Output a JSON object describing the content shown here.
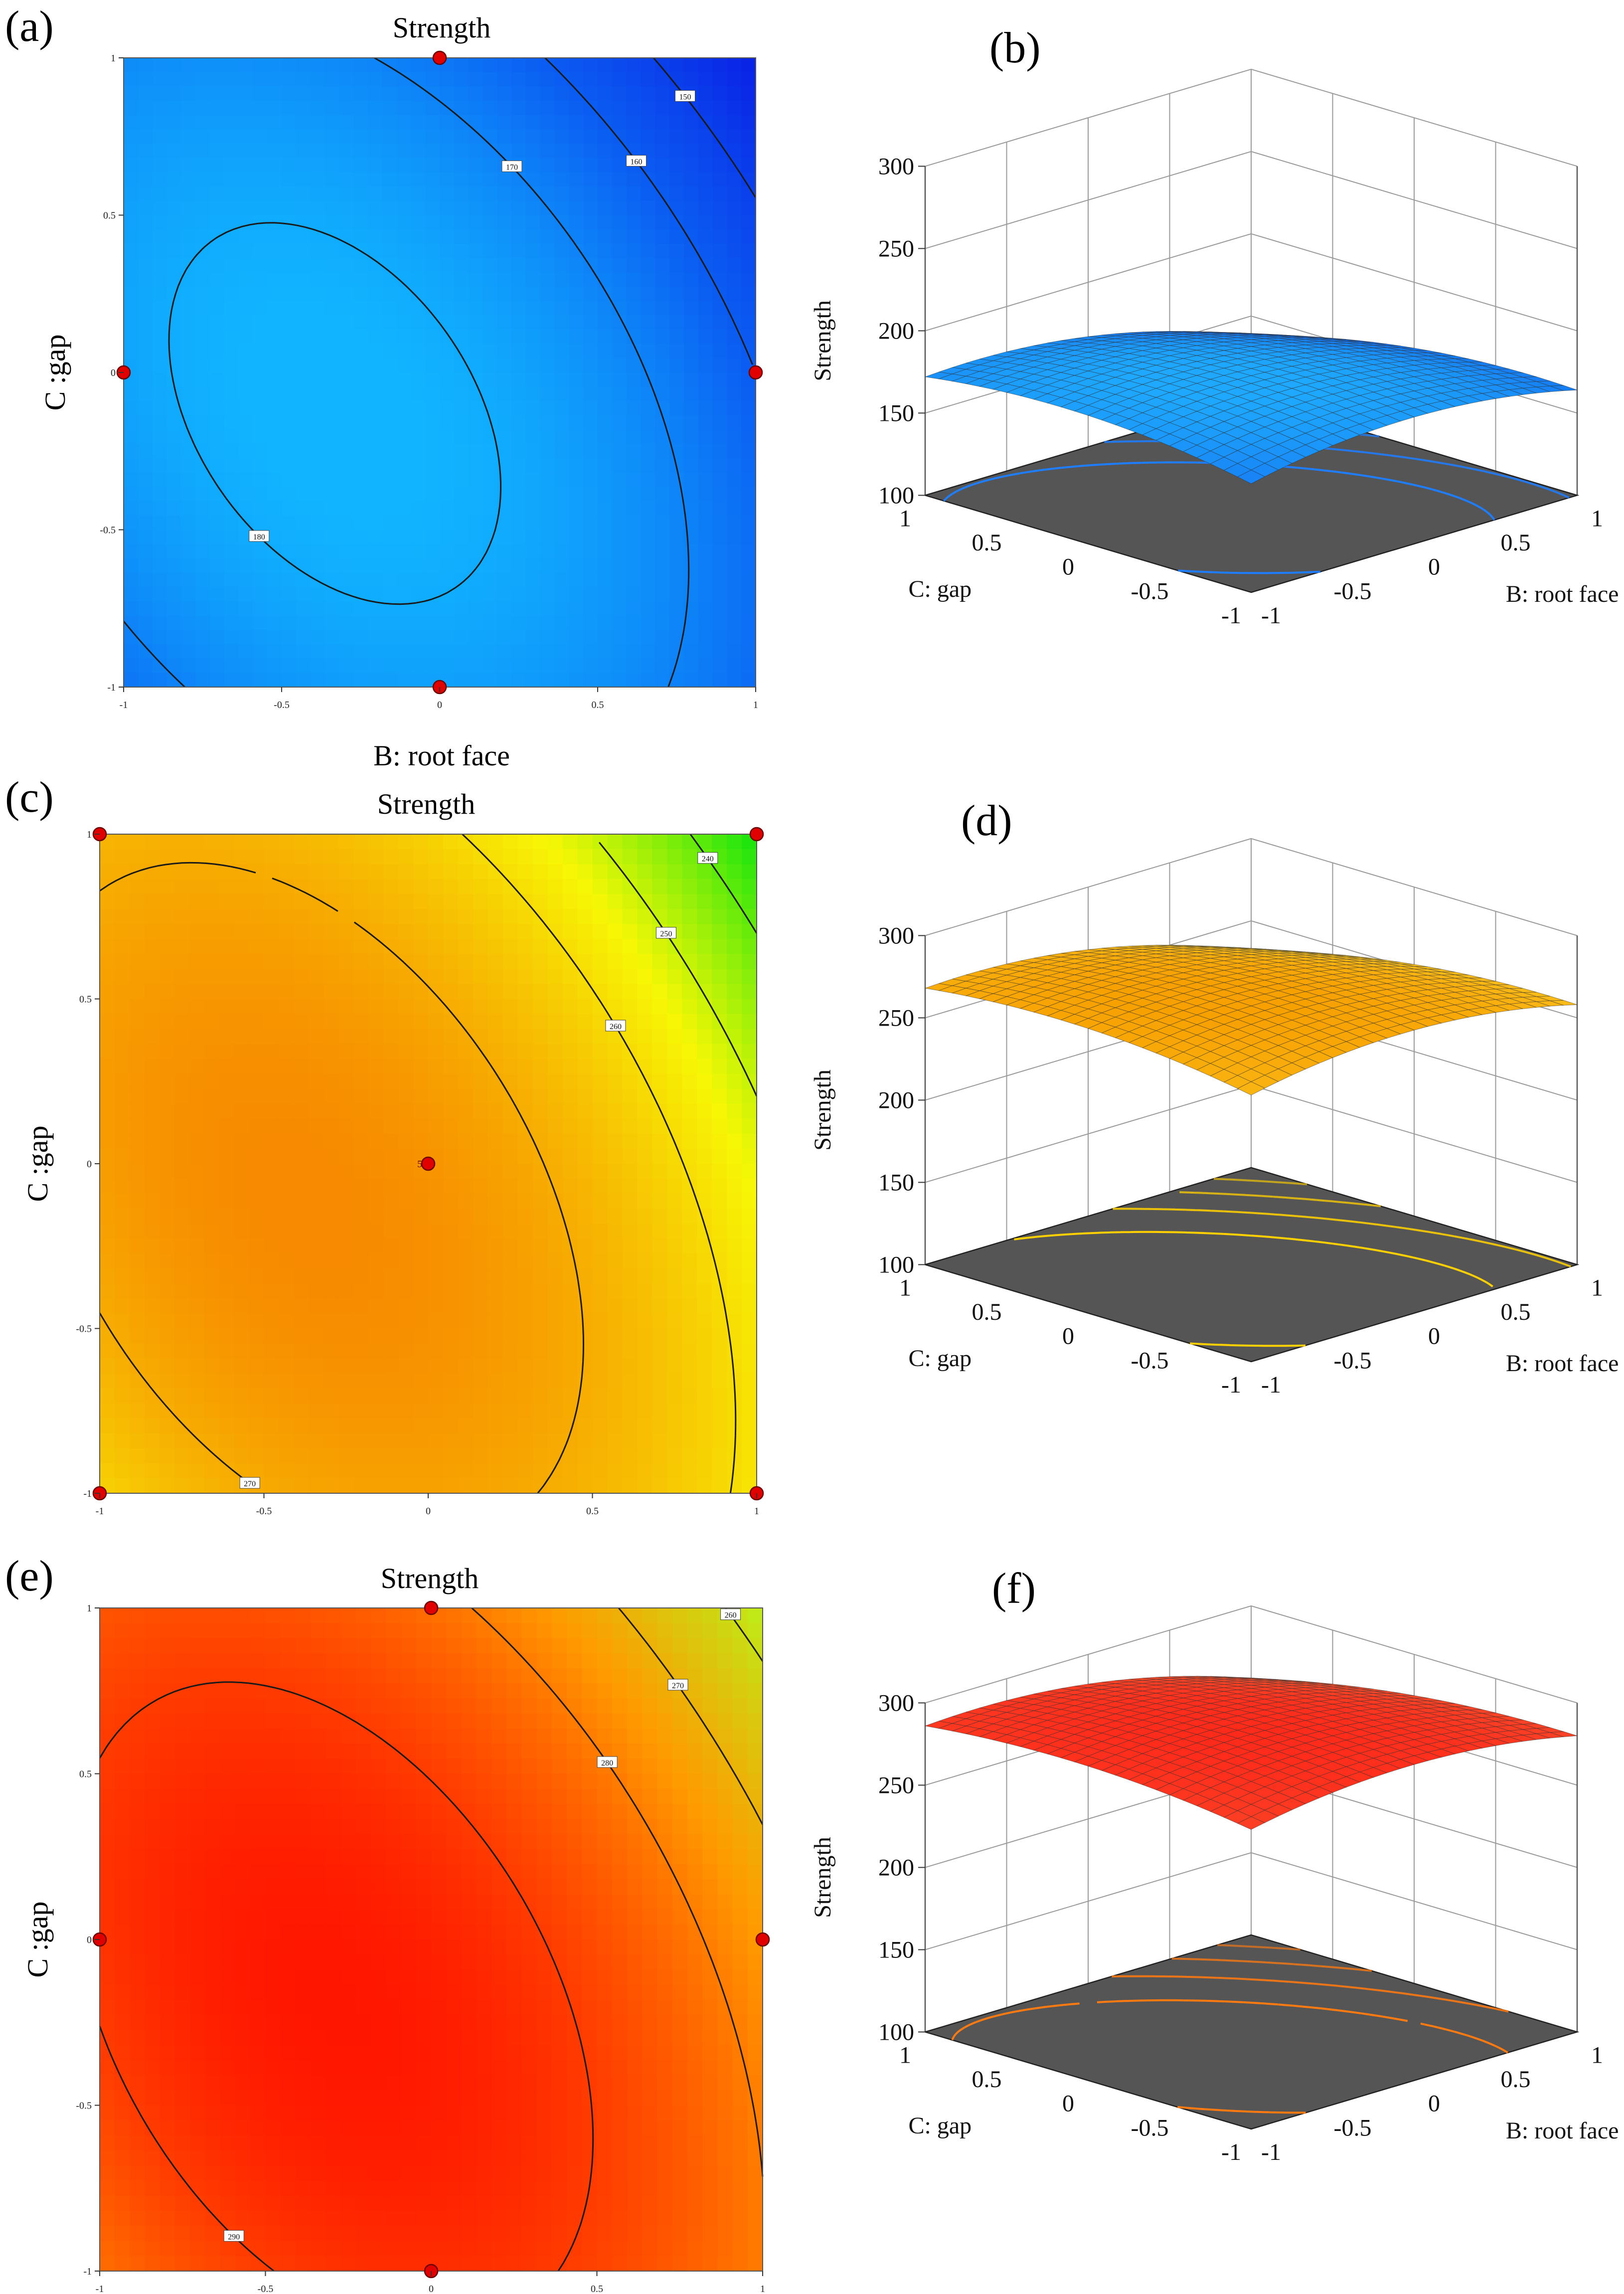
{
  "panels": [
    {
      "id": "a",
      "label": "(a)",
      "type": "contour",
      "title": "Strength",
      "xlabel": "B: root face",
      "ylabel": "C :gap",
      "show_xlabel": true,
      "xlim": [
        -1,
        1
      ],
      "ylim": [
        -1,
        1
      ],
      "xticks": [
        "-1",
        "-0.5",
        "0",
        "0.5",
        "1"
      ],
      "yticks": [
        "-1",
        "-0.5",
        "0",
        "0.5",
        "1"
      ],
      "palette": {
        "low": "#0a24e6",
        "mid": "#0b5ef2",
        "high": "#11b4ff"
      },
      "range": [
        140,
        182
      ],
      "model": {
        "b0": 181,
        "bB": -9,
        "bC": -5,
        "bBB": -12,
        "bCC": -9,
        "bBC": -8
      },
      "contours": [
        {
          "level": 180,
          "label": "180"
        },
        {
          "level": 170,
          "label": "170"
        },
        {
          "level": 160,
          "label": "160"
        },
        {
          "level": 150,
          "label": "150"
        }
      ],
      "points": [
        [
          0,
          1
        ],
        [
          -1,
          0
        ],
        [
          1,
          0
        ],
        [
          0,
          -1
        ]
      ]
    },
    {
      "id": "b",
      "label": "(b)",
      "type": "surface",
      "xlabel": "B: root face",
      "ylabel": "C: gap",
      "zlabel": "Strength",
      "zlim": [
        100,
        300
      ],
      "zticks": [
        "100",
        "150",
        "200",
        "250",
        "300"
      ],
      "xticks": [
        "-1",
        "-0.5",
        "0",
        "0.5",
        "1"
      ],
      "yticks": [
        "-1",
        "-0.5",
        "0",
        "0.5",
        "1"
      ],
      "colors": {
        "top": "#1ea8ff",
        "bottom": "#0b3fe0",
        "floor": "#555555",
        "contour": "#1f7dff"
      },
      "range": [
        140,
        182
      ],
      "model": {
        "b0": 181,
        "bB": -9,
        "bC": -5,
        "bBB": -12,
        "bCC": -9,
        "bBC": -8
      }
    },
    {
      "id": "c",
      "label": "(c)",
      "type": "contour",
      "title": "Strength",
      "xlabel": "",
      "ylabel": "C :gap",
      "show_xlabel": false,
      "xlim": [
        -1,
        1
      ],
      "ylim": [
        -1,
        1
      ],
      "xticks": [
        "-1",
        "-0.5",
        "0",
        "0.5",
        "1"
      ],
      "yticks": [
        "-1",
        "-0.5",
        "0",
        "0.5",
        "1"
      ],
      "palette": {
        "low": "#0ee40e",
        "mid": "#f7f705",
        "high": "#f78a00"
      },
      "range": [
        232,
        277
      ],
      "model": {
        "b0": 275,
        "bB": -10,
        "bC": -5,
        "bBB": -12,
        "bCC": -8,
        "bBC": -8
      },
      "contours": [
        {
          "level": 270,
          "label": "270"
        },
        {
          "level": 260,
          "label": "260"
        },
        {
          "level": 250,
          "label": "250"
        },
        {
          "level": 240,
          "label": "240"
        }
      ],
      "points": [
        [
          -1,
          1
        ],
        [
          1,
          1
        ],
        [
          0,
          0
        ],
        [
          -1,
          -1
        ],
        [
          1,
          -1
        ]
      ],
      "center_count": "5"
    },
    {
      "id": "d",
      "label": "(d)",
      "type": "surface",
      "xlabel": "B: root face",
      "ylabel": "C: gap",
      "zlabel": "Strength",
      "zlim": [
        100,
        300
      ],
      "zticks": [
        "100",
        "150",
        "200",
        "250",
        "300"
      ],
      "xticks": [
        "-1",
        "-0.5",
        "0",
        "0.5",
        "1"
      ],
      "yticks": [
        "-1",
        "-0.5",
        "0",
        "0.5",
        "1"
      ],
      "colors": {
        "top": "#f7a000",
        "bottom": "#ffe23a",
        "floor": "#555555",
        "contour": "#ffd000"
      },
      "range": [
        232,
        277
      ],
      "model": {
        "b0": 275,
        "bB": -10,
        "bC": -5,
        "bBB": -12,
        "bCC": -8,
        "bBC": -8
      }
    },
    {
      "id": "e",
      "label": "(e)",
      "type": "contour",
      "title": "Strength",
      "xlabel": "",
      "ylabel": "C :gap",
      "show_xlabel": false,
      "xlim": [
        -1,
        1
      ],
      "ylim": [
        -1,
        1
      ],
      "xticks": [
        "-1",
        "-0.5",
        "0",
        "0.5",
        "1"
      ],
      "yticks": [
        "-1",
        "-0.5",
        "0",
        "0.5",
        "1"
      ],
      "palette": {
        "low": "#b9f21a",
        "mid": "#ff9a00",
        "high": "#ff1400"
      },
      "range": [
        255,
        296
      ],
      "model": {
        "b0": 294,
        "bB": -8,
        "bC": -5,
        "bBB": -11,
        "bCC": -7,
        "bBC": -7
      },
      "contours": [
        {
          "level": 290,
          "label": "290"
        },
        {
          "level": 280,
          "label": "280"
        },
        {
          "level": 270,
          "label": "270"
        },
        {
          "level": 260,
          "label": "260"
        }
      ],
      "points": [
        [
          0,
          1
        ],
        [
          -1,
          0
        ],
        [
          1,
          0
        ],
        [
          0,
          -1
        ]
      ]
    },
    {
      "id": "f",
      "label": "(f)",
      "type": "surface",
      "xlabel": "B: root face",
      "ylabel": "C: gap",
      "zlabel": "Strength",
      "zlim": [
        100,
        300
      ],
      "zticks": [
        "100",
        "150",
        "200",
        "250",
        "300"
      ],
      "xticks": [
        "-1",
        "-0.5",
        "0",
        "0.5",
        "1"
      ],
      "yticks": [
        "-1",
        "-0.5",
        "0",
        "0.5",
        "1"
      ],
      "colors": {
        "top": "#ff2a1a",
        "bottom": "#f36a3a",
        "floor": "#555555",
        "contour": "#ff7a10"
      },
      "range": [
        255,
        296
      ],
      "model": {
        "b0": 294,
        "bB": -8,
        "bC": -5,
        "bBB": -11,
        "bCC": -7,
        "bBC": -7
      }
    }
  ]
}
